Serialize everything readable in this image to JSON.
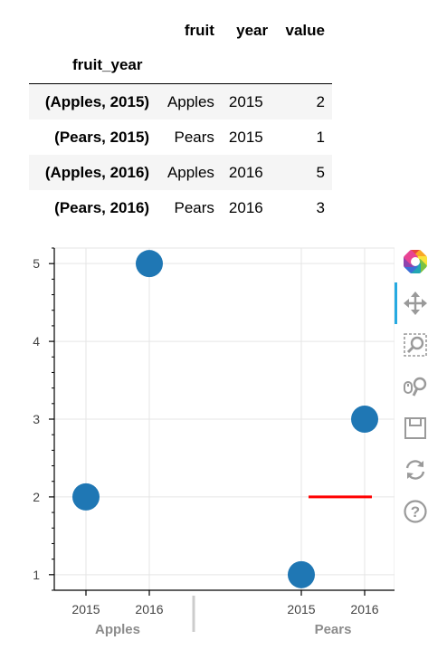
{
  "table": {
    "columns": [
      "fruit",
      "year",
      "value"
    ],
    "index_name": "fruit_year",
    "rows": [
      {
        "index": "(Apples, 2015)",
        "fruit": "Apples",
        "year": "2015",
        "value": "2"
      },
      {
        "index": "(Pears, 2015)",
        "fruit": "Pears",
        "year": "2015",
        "value": "1"
      },
      {
        "index": "(Apples, 2016)",
        "fruit": "Apples",
        "year": "2016",
        "value": "5"
      },
      {
        "index": "(Pears, 2016)",
        "fruit": "Pears",
        "year": "2016",
        "value": "3"
      }
    ]
  },
  "chart_data": {
    "type": "scatter",
    "title": "",
    "xlabel": "",
    "ylabel": "",
    "x_factors": [
      [
        "Apples",
        "2015"
      ],
      [
        "Apples",
        "2016"
      ],
      [
        "Pears",
        "2015"
      ],
      [
        "Pears",
        "2016"
      ]
    ],
    "x_groups": [
      "Apples",
      "Pears"
    ],
    "x_subfactors": [
      "2015",
      "2016"
    ],
    "y_ticks": [
      1,
      2,
      3,
      4,
      5
    ],
    "y_range": [
      0.8,
      5.2
    ],
    "grid": true,
    "points": [
      {
        "factor": [
          "Apples",
          "2015"
        ],
        "y": 2
      },
      {
        "factor": [
          "Apples",
          "2016"
        ],
        "y": 5
      },
      {
        "factor": [
          "Pears",
          "2015"
        ],
        "y": 1
      },
      {
        "factor": [
          "Pears",
          "2016"
        ],
        "y": 3
      }
    ],
    "point_color": "#1f77b4",
    "segment": {
      "from": [
        "Pears",
        "2015"
      ],
      "to": [
        "Pears",
        "2016"
      ],
      "y": 2,
      "color": "#ff0000"
    }
  },
  "toolbar": {
    "tools": [
      "bokeh-logo-icon",
      "pan-icon",
      "box-zoom-icon",
      "wheel-zoom-icon",
      "save-icon",
      "reset-icon",
      "help-icon"
    ],
    "active": "pan-icon"
  }
}
